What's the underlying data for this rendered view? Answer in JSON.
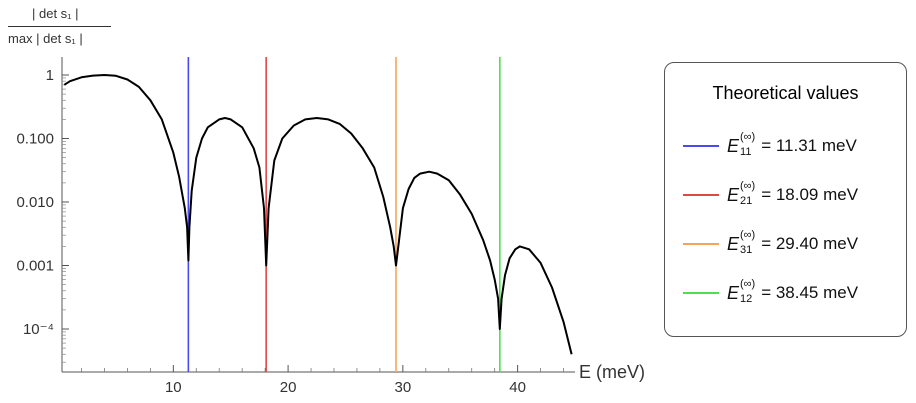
{
  "chart_data": {
    "type": "line",
    "ylabel_numerator": "| det s₁ |",
    "ylabel_denominator": "max | det s₁ |",
    "xlabel": "E (meV)",
    "xlim": [
      0,
      45
    ],
    "ylim": [
      5e-05,
      1.5
    ],
    "yscale": "log",
    "xticks": [
      10,
      20,
      30,
      40
    ],
    "xtick_labels": [
      "10",
      "20",
      "30",
      "40"
    ],
    "yticks": [
      1,
      0.1,
      0.01,
      0.001,
      0.0001
    ],
    "ytick_labels": [
      "1",
      "0.100",
      "0.010",
      "0.001",
      "10⁻⁴"
    ],
    "series": [
      {
        "color": "#000000",
        "x": [
          0.5,
          1.0,
          2.0,
          3.0,
          4.0,
          5.0,
          6.0,
          7.0,
          8.0,
          9.0,
          10.0,
          10.5,
          11.0,
          11.2,
          11.31,
          11.4,
          11.6,
          12.0,
          12.5,
          13.0,
          14.0,
          14.5,
          15.0,
          16.0,
          17.0,
          17.5,
          17.9,
          18.09,
          18.3,
          18.8,
          19.5,
          20.5,
          21.5,
          22.5,
          23.5,
          24.5,
          25.5,
          26.5,
          27.5,
          28.3,
          28.9,
          29.2,
          29.4,
          29.6,
          30.0,
          30.5,
          31.0,
          31.5,
          32.3,
          33.0,
          34.0,
          35.0,
          36.0,
          37.0,
          37.6,
          38.0,
          38.3,
          38.45,
          38.6,
          38.9,
          39.3,
          39.8,
          40.2,
          41.0,
          42.0,
          43.0,
          44.0,
          44.7
        ],
        "y": [
          0.7,
          0.8,
          0.92,
          0.98,
          1.0,
          0.97,
          0.85,
          0.65,
          0.4,
          0.2,
          0.06,
          0.025,
          0.008,
          0.004,
          0.0012,
          0.004,
          0.015,
          0.05,
          0.1,
          0.15,
          0.2,
          0.21,
          0.2,
          0.15,
          0.07,
          0.035,
          0.008,
          0.001,
          0.008,
          0.045,
          0.1,
          0.16,
          0.2,
          0.21,
          0.2,
          0.17,
          0.12,
          0.07,
          0.035,
          0.012,
          0.004,
          0.002,
          0.001,
          0.002,
          0.008,
          0.016,
          0.024,
          0.028,
          0.03,
          0.028,
          0.022,
          0.013,
          0.0065,
          0.0025,
          0.0012,
          0.0006,
          0.0003,
          0.0001,
          0.0003,
          0.0007,
          0.0013,
          0.0018,
          0.002,
          0.0018,
          0.0011,
          0.00045,
          0.00013,
          4e-05
        ]
      }
    ],
    "vlines": [
      {
        "x": 11.31,
        "color": "#4a4af0",
        "label_sub": "11",
        "label_value": "= 11.31 meV"
      },
      {
        "x": 18.09,
        "color": "#e04848",
        "label_sub": "21",
        "label_value": "= 18.09 meV"
      },
      {
        "x": 29.4,
        "color": "#f5a55a",
        "label_sub": "31",
        "label_value": "= 29.40 meV"
      },
      {
        "x": 38.45,
        "color": "#4de04d",
        "label_sub": "12",
        "label_value": "= 38.45 meV"
      }
    ],
    "legend": {
      "title": "Theoretical values",
      "symbol": "E",
      "superscript": "(∞)",
      "placement": "right"
    }
  }
}
